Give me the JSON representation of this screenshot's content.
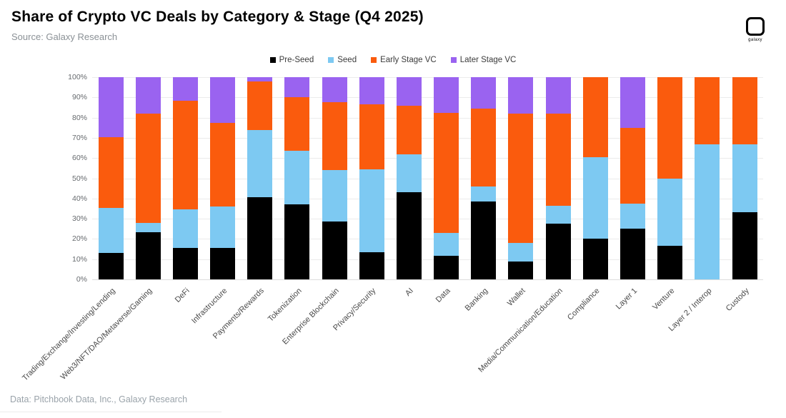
{
  "header": {
    "title": "Share of Crypto VC Deals by Category & Stage (Q4 2025)",
    "subtitle": "Source: Galaxy Research",
    "logo_text": "galaxy"
  },
  "footer": {
    "text": "Data: Pitchbook Data, Inc., Galaxy Research"
  },
  "colors": {
    "pre_seed": "#000000",
    "seed": "#7dc9f2",
    "early_stage": "#fa5b0d",
    "later_stage": "#9a63f0",
    "gridline": "#ebebeb",
    "muted_text": "#8b9196"
  },
  "chart_data": {
    "type": "bar",
    "stacked": true,
    "title": "Share of Crypto VC Deals by Category & Stage (Q4 2025)",
    "xlabel": "",
    "ylabel": "",
    "ylim": [
      0,
      100
    ],
    "yticks": [
      0,
      10,
      20,
      30,
      40,
      50,
      60,
      70,
      80,
      90,
      100
    ],
    "ytick_suffix": "%",
    "grid": true,
    "legend_position": "top",
    "categories": [
      "Trading/Exchange/Investing/Lending",
      "Web3/NFT/DAO/Metaverse/Gaming",
      "DeFi",
      "Infrastructure",
      "Payments/Rewards",
      "Tokenization",
      "Enterprise Blockchain",
      "Privacy/Security",
      "AI",
      "Data",
      "Banking",
      "Wallet",
      "Media/Communication/Education",
      "Compliance",
      "Layer 1",
      "Venture",
      "Layer 2 / Interop",
      "Custody"
    ],
    "series": [
      {
        "name": "Pre-Seed",
        "color": "#000000",
        "values": [
          13,
          23.5,
          15.5,
          15.5,
          40.5,
          37,
          28.5,
          13.5,
          43,
          11.5,
          38.5,
          9,
          27.5,
          20,
          25,
          16.7,
          0,
          33.3
        ]
      },
      {
        "name": "Seed",
        "color": "#7dc9f2",
        "values": [
          22.5,
          4.5,
          19,
          20.5,
          33.5,
          26.5,
          25.5,
          41,
          19,
          11.5,
          7.5,
          9,
          9,
          40.5,
          12.5,
          33.3,
          66.7,
          33.4
        ]
      },
      {
        "name": "Early Stage VC",
        "color": "#fa5b0d",
        "values": [
          35,
          54,
          54,
          41.5,
          24,
          26.5,
          33.5,
          32,
          24,
          59.5,
          38.5,
          64,
          45.5,
          39.5,
          37.5,
          50,
          33.3,
          33.3
        ]
      },
      {
        "name": "Later Stage VC",
        "color": "#9a63f0",
        "values": [
          29.5,
          18,
          11.5,
          22.5,
          2,
          10,
          12.5,
          13.5,
          14,
          17.5,
          15.5,
          18,
          18,
          0,
          25,
          0,
          0,
          0
        ]
      }
    ]
  }
}
